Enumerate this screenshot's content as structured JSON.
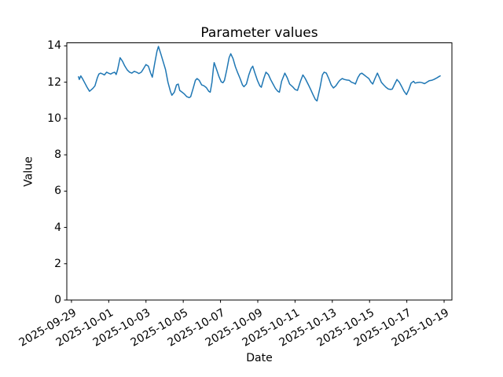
{
  "figure": {
    "background": "#ffffff",
    "text_color": "#000000"
  },
  "chart_data": {
    "type": "line",
    "title": "Parameter values",
    "xlabel": "Date",
    "ylabel": "Value",
    "grid": false,
    "legend": null,
    "line_color": "#1f77b4",
    "axis_color": "#000000",
    "ylim": [
      0,
      14.17
    ],
    "y_ticks": [
      0,
      2,
      4,
      6,
      8,
      10,
      12,
      14
    ],
    "xlim_days": [
      -0.25,
      20.42
    ],
    "x_tick_days": [
      0,
      2,
      4,
      6,
      8,
      10,
      12,
      14,
      16,
      18,
      20
    ],
    "x_tick_labels": [
      "2025-09-29",
      "2025-10-01",
      "2025-10-03",
      "2025-10-05",
      "2025-10-07",
      "2025-10-09",
      "2025-10-11",
      "2025-10-13",
      "2025-10-15",
      "2025-10-17",
      "2025-10-19"
    ],
    "x_unit": "days since 2025-09-29",
    "series": [
      {
        "name": "parameter-values",
        "color": "#1f77b4",
        "points": [
          [
            0.38,
            12.3
          ],
          [
            0.42,
            12.15
          ],
          [
            0.5,
            12.35
          ],
          [
            0.59,
            12.2
          ],
          [
            0.72,
            11.95
          ],
          [
            0.84,
            11.72
          ],
          [
            0.97,
            11.5
          ],
          [
            1.14,
            11.65
          ],
          [
            1.26,
            11.8
          ],
          [
            1.39,
            12.25
          ],
          [
            1.47,
            12.45
          ],
          [
            1.56,
            12.5
          ],
          [
            1.68,
            12.45
          ],
          [
            1.77,
            12.4
          ],
          [
            1.89,
            12.55
          ],
          [
            1.98,
            12.5
          ],
          [
            2.11,
            12.45
          ],
          [
            2.19,
            12.5
          ],
          [
            2.32,
            12.55
          ],
          [
            2.4,
            12.42
          ],
          [
            2.48,
            12.7
          ],
          [
            2.61,
            13.35
          ],
          [
            2.74,
            13.15
          ],
          [
            2.86,
            12.9
          ],
          [
            2.99,
            12.68
          ],
          [
            3.12,
            12.55
          ],
          [
            3.24,
            12.5
          ],
          [
            3.37,
            12.6
          ],
          [
            3.49,
            12.55
          ],
          [
            3.62,
            12.48
          ],
          [
            3.75,
            12.55
          ],
          [
            3.87,
            12.75
          ],
          [
            4.0,
            12.97
          ],
          [
            4.13,
            12.88
          ],
          [
            4.25,
            12.5
          ],
          [
            4.34,
            12.28
          ],
          [
            4.46,
            13.0
          ],
          [
            4.59,
            13.7
          ],
          [
            4.67,
            13.97
          ],
          [
            4.8,
            13.55
          ],
          [
            4.93,
            13.1
          ],
          [
            5.05,
            12.7
          ],
          [
            5.18,
            12.0
          ],
          [
            5.31,
            11.5
          ],
          [
            5.39,
            11.28
          ],
          [
            5.52,
            11.45
          ],
          [
            5.64,
            11.85
          ],
          [
            5.73,
            11.9
          ],
          [
            5.81,
            11.55
          ],
          [
            5.94,
            11.45
          ],
          [
            6.06,
            11.35
          ],
          [
            6.19,
            11.2
          ],
          [
            6.32,
            11.15
          ],
          [
            6.4,
            11.2
          ],
          [
            6.53,
            11.65
          ],
          [
            6.65,
            12.1
          ],
          [
            6.74,
            12.2
          ],
          [
            6.86,
            12.1
          ],
          [
            6.99,
            11.85
          ],
          [
            7.12,
            11.8
          ],
          [
            7.24,
            11.7
          ],
          [
            7.37,
            11.5
          ],
          [
            7.45,
            11.45
          ],
          [
            7.54,
            12.0
          ],
          [
            7.62,
            12.8
          ],
          [
            7.66,
            13.08
          ],
          [
            7.79,
            12.7
          ],
          [
            7.92,
            12.3
          ],
          [
            8.04,
            12.02
          ],
          [
            8.13,
            11.97
          ],
          [
            8.21,
            12.1
          ],
          [
            8.34,
            12.7
          ],
          [
            8.46,
            13.35
          ],
          [
            8.55,
            13.57
          ],
          [
            8.67,
            13.3
          ],
          [
            8.8,
            12.85
          ],
          [
            8.93,
            12.5
          ],
          [
            9.05,
            12.2
          ],
          [
            9.18,
            11.85
          ],
          [
            9.26,
            11.75
          ],
          [
            9.39,
            11.9
          ],
          [
            9.52,
            12.4
          ],
          [
            9.64,
            12.75
          ],
          [
            9.73,
            12.88
          ],
          [
            9.85,
            12.5
          ],
          [
            9.98,
            12.1
          ],
          [
            10.11,
            11.8
          ],
          [
            10.19,
            11.72
          ],
          [
            10.32,
            12.2
          ],
          [
            10.44,
            12.55
          ],
          [
            10.57,
            12.42
          ],
          [
            10.69,
            12.15
          ],
          [
            10.82,
            11.9
          ],
          [
            10.95,
            11.65
          ],
          [
            11.07,
            11.5
          ],
          [
            11.16,
            11.45
          ],
          [
            11.28,
            12.05
          ],
          [
            11.45,
            12.5
          ],
          [
            11.58,
            12.25
          ],
          [
            11.71,
            11.9
          ],
          [
            11.87,
            11.75
          ],
          [
            12.0,
            11.6
          ],
          [
            12.13,
            11.55
          ],
          [
            12.29,
            12.05
          ],
          [
            12.42,
            12.4
          ],
          [
            12.55,
            12.2
          ],
          [
            12.72,
            11.85
          ],
          [
            12.84,
            11.6
          ],
          [
            12.97,
            11.3
          ],
          [
            13.09,
            11.05
          ],
          [
            13.18,
            10.97
          ],
          [
            13.35,
            11.75
          ],
          [
            13.47,
            12.4
          ],
          [
            13.56,
            12.55
          ],
          [
            13.68,
            12.5
          ],
          [
            13.81,
            12.2
          ],
          [
            13.94,
            11.85
          ],
          [
            14.06,
            11.68
          ],
          [
            14.19,
            11.8
          ],
          [
            14.32,
            12.0
          ],
          [
            14.4,
            12.1
          ],
          [
            14.53,
            12.2
          ],
          [
            14.65,
            12.15
          ],
          [
            14.78,
            12.12
          ],
          [
            14.91,
            12.1
          ],
          [
            15.03,
            12.0
          ],
          [
            15.16,
            11.95
          ],
          [
            15.24,
            11.9
          ],
          [
            15.37,
            12.25
          ],
          [
            15.49,
            12.45
          ],
          [
            15.58,
            12.5
          ],
          [
            15.71,
            12.4
          ],
          [
            15.83,
            12.3
          ],
          [
            15.96,
            12.2
          ],
          [
            16.08,
            12.0
          ],
          [
            16.17,
            11.9
          ],
          [
            16.29,
            12.2
          ],
          [
            16.42,
            12.5
          ],
          [
            16.55,
            12.2
          ],
          [
            16.63,
            12.0
          ],
          [
            16.76,
            11.85
          ],
          [
            16.88,
            11.72
          ],
          [
            17.01,
            11.62
          ],
          [
            17.14,
            11.6
          ],
          [
            17.22,
            11.62
          ],
          [
            17.35,
            11.9
          ],
          [
            17.47,
            12.15
          ],
          [
            17.6,
            12.0
          ],
          [
            17.73,
            11.75
          ],
          [
            17.85,
            11.5
          ],
          [
            17.98,
            11.32
          ],
          [
            18.11,
            11.6
          ],
          [
            18.23,
            11.95
          ],
          [
            18.36,
            12.05
          ],
          [
            18.44,
            11.95
          ],
          [
            18.57,
            11.98
          ],
          [
            18.69,
            12.0
          ],
          [
            18.82,
            11.97
          ],
          [
            18.95,
            11.92
          ],
          [
            19.07,
            12.0
          ],
          [
            19.2,
            12.08
          ],
          [
            19.33,
            12.1
          ],
          [
            19.45,
            12.15
          ],
          [
            19.58,
            12.22
          ],
          [
            19.71,
            12.3
          ],
          [
            19.79,
            12.35
          ]
        ]
      }
    ]
  }
}
